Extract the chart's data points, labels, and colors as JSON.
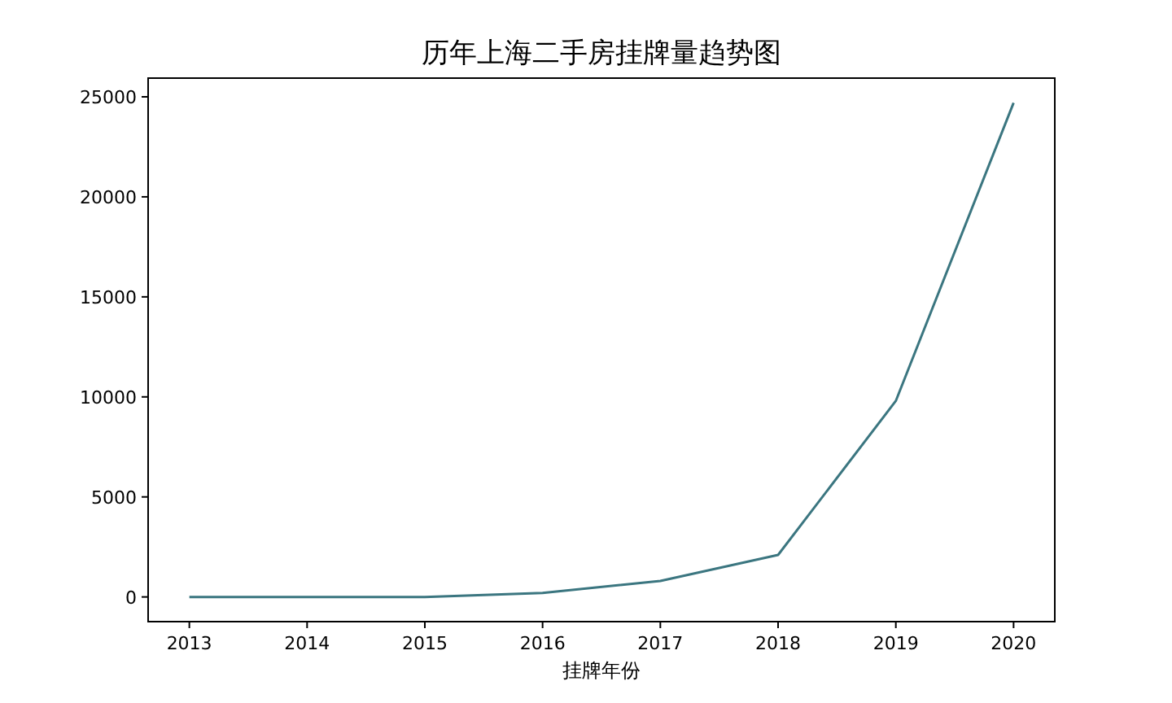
{
  "chart_data": {
    "type": "line",
    "title": "历年上海二手房挂牌量趋势图",
    "xlabel": "挂牌年份",
    "x": [
      2013,
      2014,
      2015,
      2016,
      2017,
      2018,
      2019,
      2020
    ],
    "xlim": [
      2012.65,
      2020.35
    ],
    "xticks": [
      2013,
      2014,
      2015,
      2016,
      2017,
      2018,
      2019,
      2020
    ],
    "ylim": [
      -1235,
      25935
    ],
    "yticks": [
      0,
      5000,
      10000,
      15000,
      20000,
      25000
    ],
    "series": [
      {
        "color": "#3b7680",
        "values": [
          0,
          0,
          0,
          200,
          800,
          2100,
          9800,
          24700
        ]
      }
    ],
    "marker": "none",
    "line_style": "solid"
  }
}
